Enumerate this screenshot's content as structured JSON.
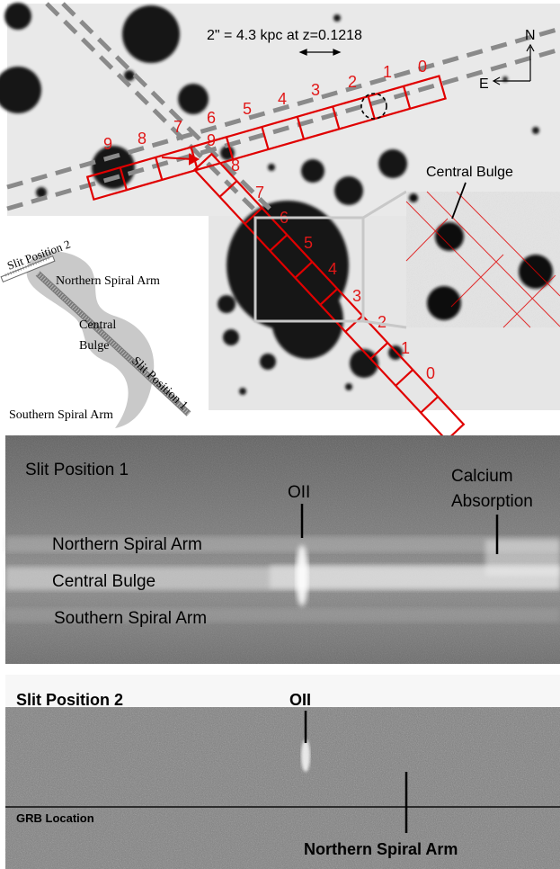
{
  "figure": {
    "top_panel": {
      "scale_label": "2\" = 4.3 kpc at z=0.1218",
      "compass": {
        "north": "N",
        "east": "E"
      },
      "slit2_segment_labels": [
        "0",
        "1",
        "2",
        "3",
        "4",
        "5",
        "6",
        "7",
        "8",
        "9"
      ],
      "slit1_segment_labels": [
        "0",
        "1",
        "2",
        "3",
        "4",
        "5",
        "6",
        "7",
        "8",
        "9"
      ],
      "inset_label": "Central Bulge",
      "sketch": {
        "slit2_label": "Slit Position 2",
        "slit1_label": "Slit Position 1",
        "northern_arm": "Northern Spiral Arm",
        "central_bulge_line1": "Central",
        "central_bulge_line2": "Bulge",
        "southern_arm": "Southern Spiral Arm"
      }
    },
    "spectrum1": {
      "title": "Slit Position 1",
      "line_oii": "OII",
      "calcium_line1": "Calcium",
      "calcium_line2": "Absorption",
      "row_northern": "Northern Spiral Arm",
      "row_central": "Central Bulge",
      "row_southern": "Southern Spiral Arm"
    },
    "spectrum2": {
      "title": "Slit Position 2",
      "line_oii": "OII",
      "grb_location": "GRB Location",
      "northern_arm": "Northern Spiral Arm"
    },
    "colors": {
      "slit_red": "#e00000",
      "label_red": "#e11818"
    }
  }
}
